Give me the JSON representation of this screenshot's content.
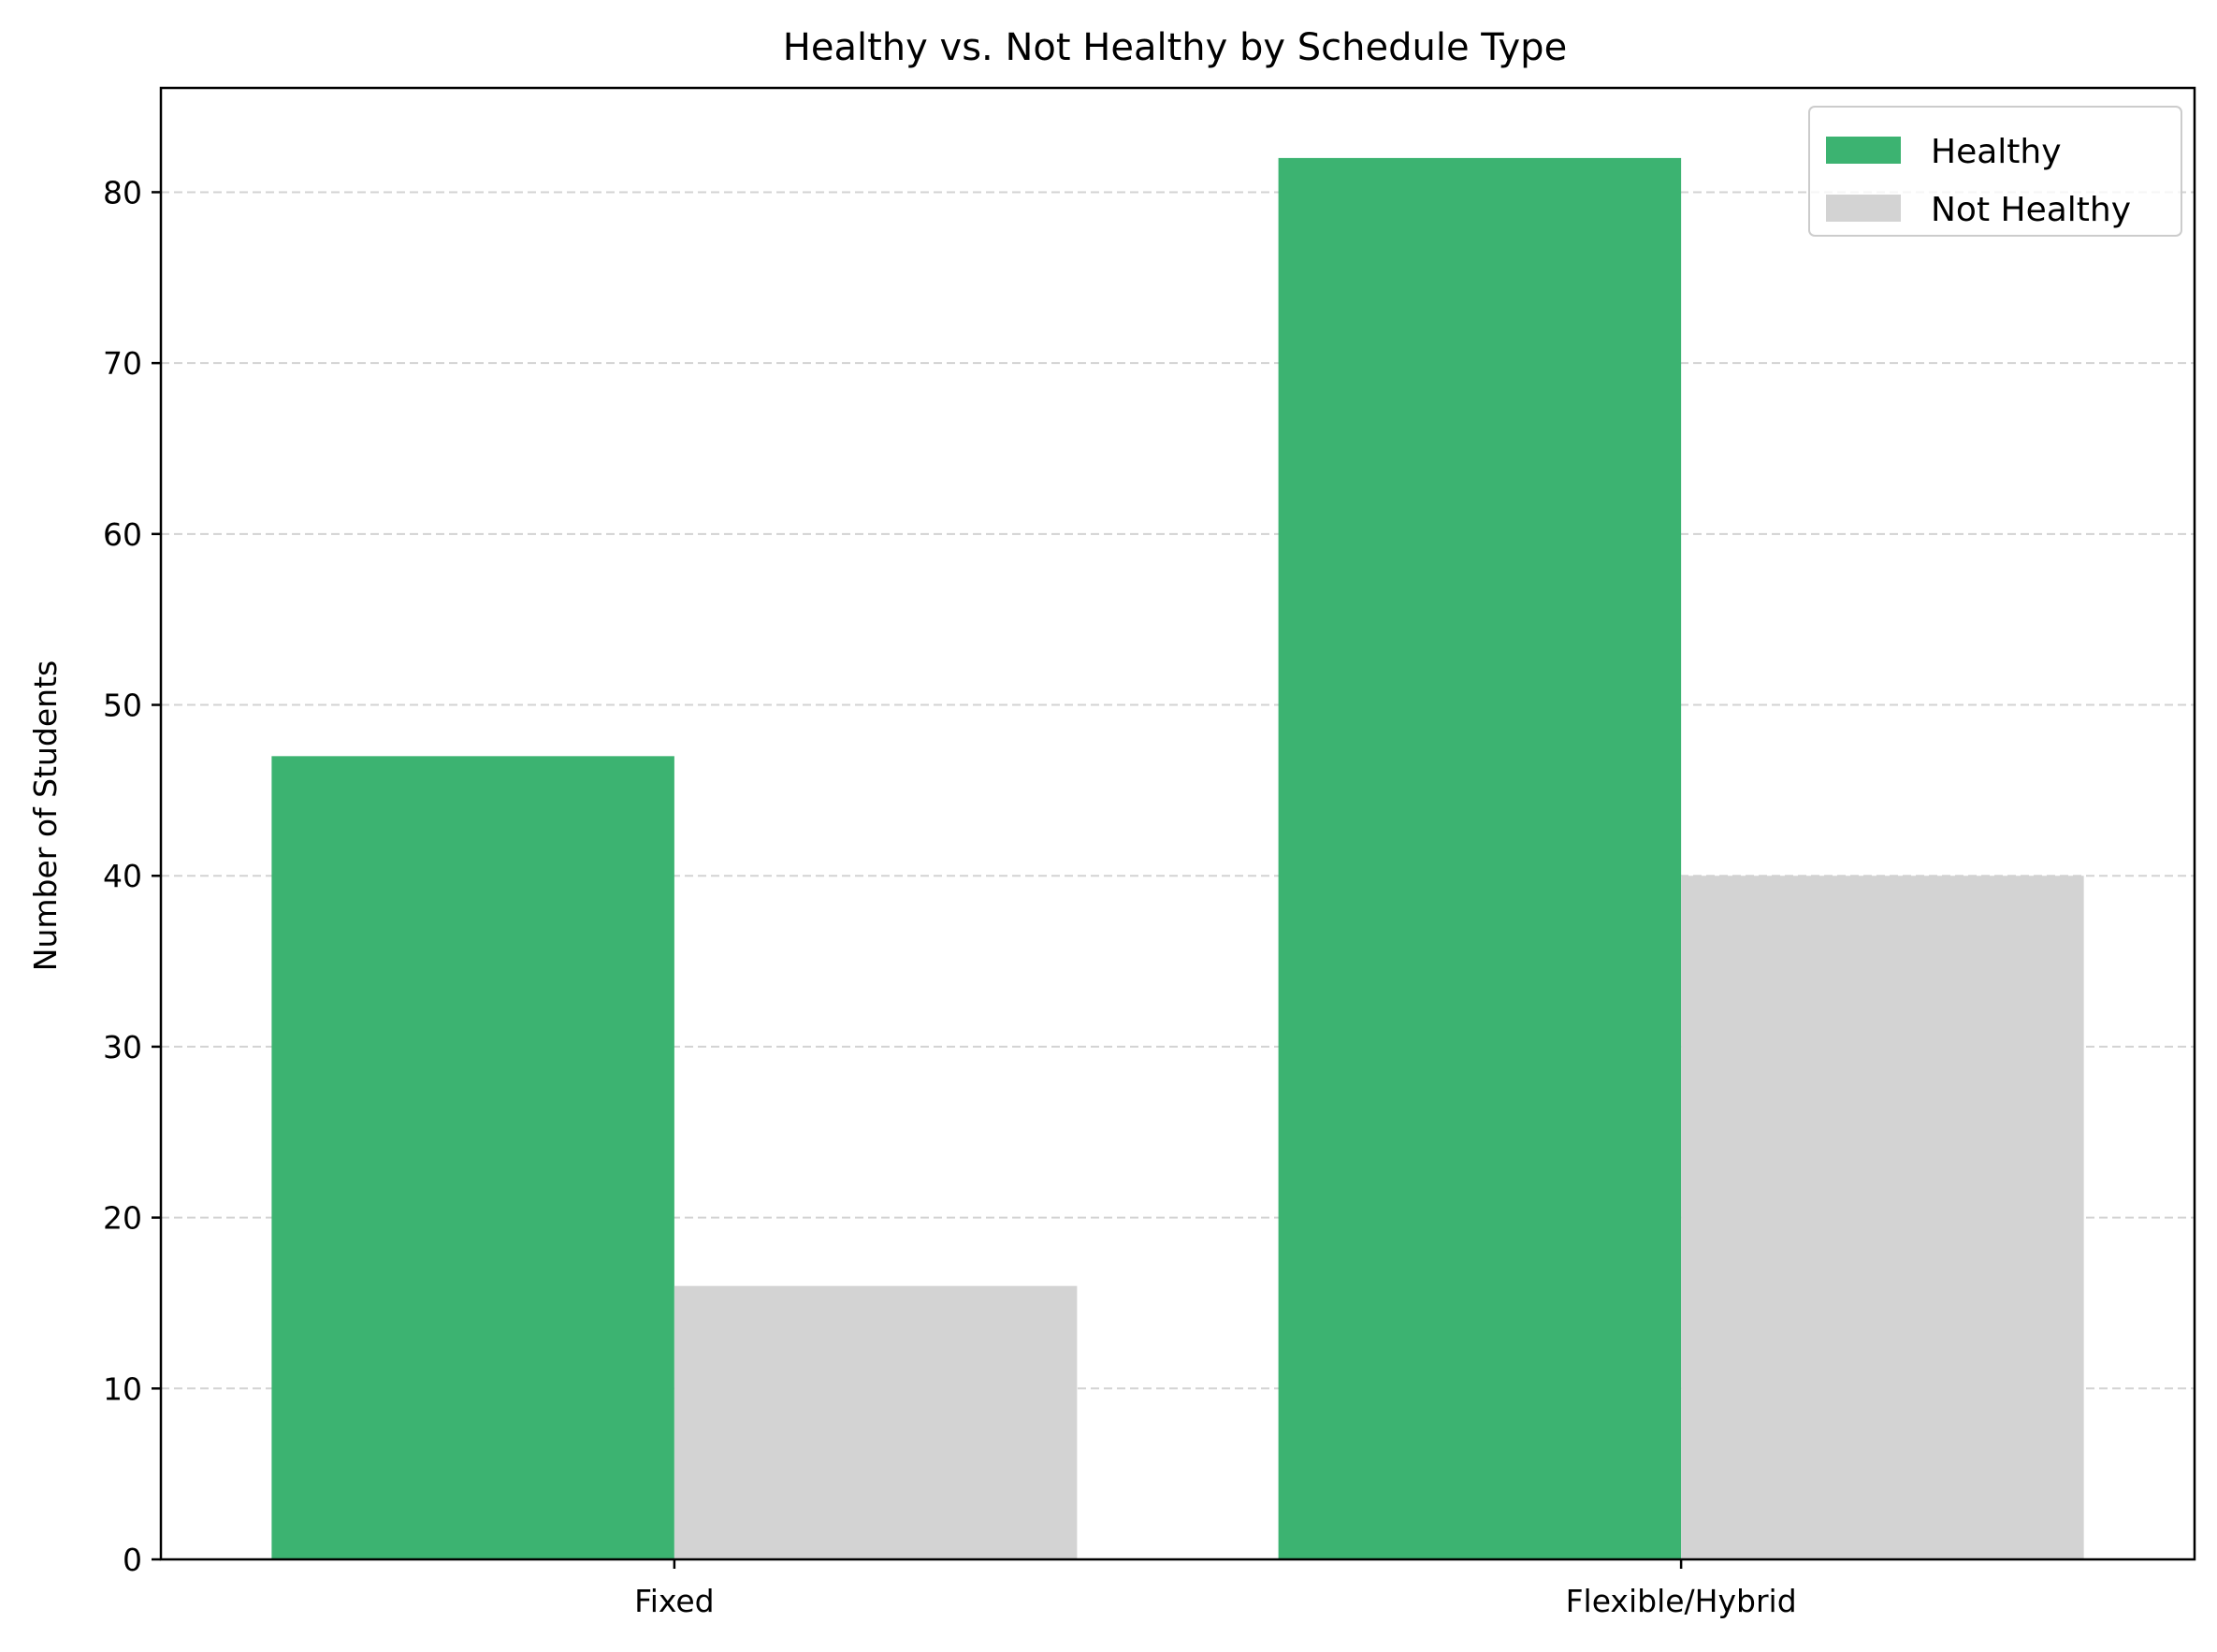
{
  "chart_data": {
    "type": "bar",
    "title": "Healthy vs. Not Healthy by Schedule Type",
    "xlabel": "",
    "ylabel": "Number of Students",
    "categories": [
      "Fixed",
      "Flexible/Hybrid"
    ],
    "series": [
      {
        "name": "Healthy",
        "values": [
          47,
          82
        ],
        "color": "#3cb371"
      },
      {
        "name": "Not Healthy",
        "values": [
          16,
          40
        ],
        "color": "#d3d3d3"
      }
    ],
    "ylim": [
      0,
      86.1
    ],
    "yticks": [
      0,
      10,
      20,
      30,
      40,
      50,
      60,
      70,
      80
    ],
    "grid": {
      "axis": "y",
      "style": "dashed",
      "color": "#d3d3d3"
    },
    "legend": {
      "position": "top-right"
    }
  }
}
